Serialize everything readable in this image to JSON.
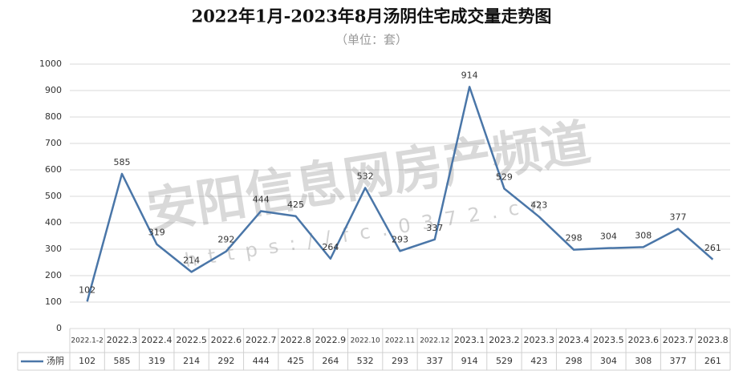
{
  "chart_data": {
    "type": "line",
    "title": "2022年1月-2023年8月汤阴住宅成交量走势图",
    "subtitle": "（单位：套）",
    "watermark": "安阳信息网房产频道",
    "watermark_url": "https://fc.0372.cn",
    "categories": [
      "2022.1-2",
      "2022.3",
      "2022.4",
      "2022.5",
      "2022.6",
      "2022.7",
      "2022.8",
      "2022.9",
      "2022.10",
      "2022.11",
      "2022.12",
      "2023.1",
      "2023.2",
      "2023.3",
      "2023.4",
      "2023.5",
      "2023.6",
      "2023.7",
      "2023.8"
    ],
    "series": [
      {
        "name": "汤阴",
        "color": "#4a76a8",
        "values": [
          102,
          585,
          319,
          214,
          292,
          444,
          425,
          264,
          532,
          293,
          337,
          914,
          529,
          423,
          298,
          304,
          308,
          377,
          261
        ]
      }
    ],
    "ylim": [
      0,
      1000
    ],
    "yticks": [
      0,
      100,
      200,
      300,
      400,
      500,
      600,
      700,
      800,
      900,
      1000
    ],
    "grid": true,
    "data_table": true
  }
}
